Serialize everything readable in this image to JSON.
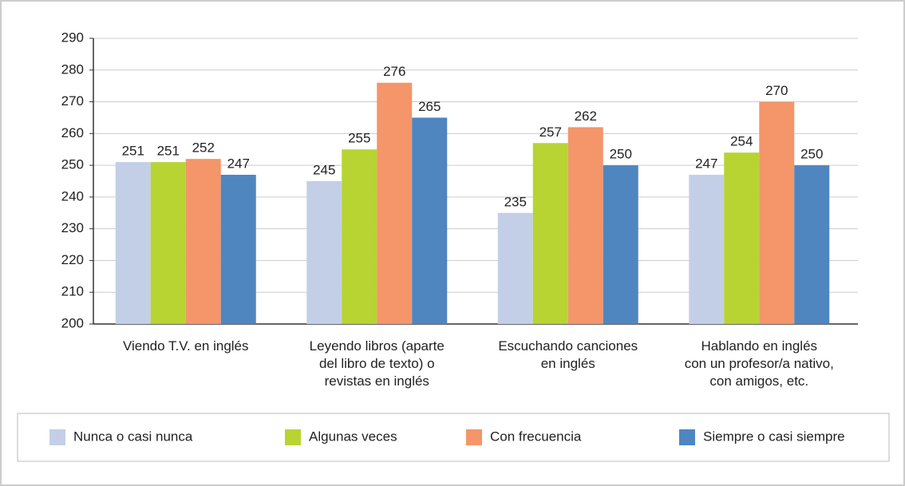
{
  "chart_data": {
    "type": "bar",
    "categories": [
      "Viendo T.V. en inglés",
      "Leyendo libros (aparte\ndel libro de texto) o\nrevistas en inglés",
      "Escuchando canciones\nen inglés",
      "Hablando en inglés\ncon un profesor/a nativo,\ncon amigos, etc."
    ],
    "series": [
      {
        "name": "Nunca o casi nunca",
        "color": "#c3cfe7",
        "values": [
          251,
          245,
          235,
          247
        ]
      },
      {
        "name": "Algunas veces",
        "color": "#b7d433",
        "values": [
          251,
          255,
          257,
          254
        ]
      },
      {
        "name": "Con frecuencia",
        "color": "#f4956a",
        "values": [
          252,
          276,
          262,
          270
        ]
      },
      {
        "name": "Siempre o casi siempre",
        "color": "#4f86c0",
        "values": [
          247,
          265,
          250,
          250
        ]
      }
    ],
    "ylim": [
      200,
      290
    ],
    "yticks": [
      200,
      210,
      220,
      230,
      240,
      250,
      260,
      270,
      280,
      290
    ],
    "grid": true,
    "legend": "bottom"
  }
}
